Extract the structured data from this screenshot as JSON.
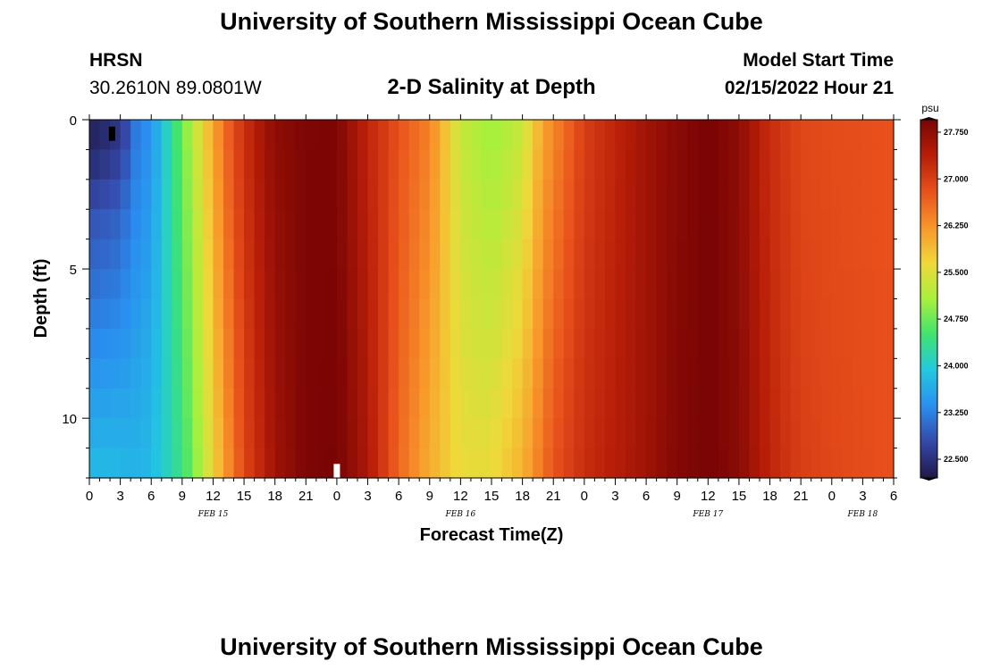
{
  "header": {
    "title": "University of Southern Mississippi Ocean Cube",
    "station_code": "HRSN",
    "station_coords": "30.2610N  89.0801W",
    "chart_title": "2-D Salinity at Depth",
    "start_label": "Model Start Time",
    "start_value": "02/15/2022 Hour 21"
  },
  "footer": {
    "title": "University of Southern Mississippi Ocean Cube"
  },
  "chart_data": {
    "type": "heatmap",
    "title": "2-D Salinity at Depth",
    "xlabel": "Forecast Time(Z)",
    "ylabel": "Depth (ft)",
    "x_tick_labels": [
      "0",
      "3",
      "6",
      "9",
      "12",
      "15",
      "18",
      "21",
      "0",
      "3",
      "6",
      "9",
      "12",
      "15",
      "18",
      "21",
      "0",
      "3",
      "6",
      "9",
      "12",
      "15",
      "18",
      "21",
      "0",
      "3",
      "6"
    ],
    "date_labels": [
      {
        "text": "FEB 15",
        "tick_index": 4
      },
      {
        "text": "FEB 16",
        "tick_index": 12
      },
      {
        "text": "FEB 17",
        "tick_index": 20
      },
      {
        "text": "FEB 18",
        "tick_index": 25
      }
    ],
    "y_ticks": [
      0,
      5,
      10
    ],
    "y_minor_step": 1,
    "ylim": [
      0,
      12
    ],
    "y_inverted": true,
    "hours_span": 78,
    "depth_rows": 12,
    "colorbar": {
      "unit": "psu",
      "range": [
        22.2,
        27.95
      ],
      "ticks": [
        "22.500",
        "23.250",
        "24.000",
        "24.750",
        "25.500",
        "26.250",
        "27.000",
        "27.750"
      ],
      "tick_values": [
        22.5,
        23.25,
        24.0,
        24.75,
        25.5,
        26.25,
        27.0,
        27.75
      ],
      "colors": [
        "#1f1848",
        "#3548a8",
        "#2a8ef0",
        "#22c8e0",
        "#3ee470",
        "#a8f03c",
        "#f0d83a",
        "#f8962a",
        "#e8501c",
        "#b81e08",
        "#780404"
      ]
    },
    "salinity_surface_profile": [
      [
        0,
        22.5
      ],
      [
        3,
        22.7
      ],
      [
        4,
        23.1
      ],
      [
        6,
        23.4
      ],
      [
        8,
        24.3
      ],
      [
        10,
        25.2
      ],
      [
        12,
        26.1
      ],
      [
        14,
        26.9
      ],
      [
        16,
        27.4
      ],
      [
        18,
        27.75
      ],
      [
        21,
        27.9
      ],
      [
        24,
        27.9
      ],
      [
        27,
        27.3
      ],
      [
        30,
        26.8
      ],
      [
        33,
        26.4
      ],
      [
        36,
        25.3
      ],
      [
        39,
        25.0
      ],
      [
        42,
        25.3
      ],
      [
        44,
        26.1
      ],
      [
        48,
        27.0
      ],
      [
        51,
        27.3
      ],
      [
        54,
        27.6
      ],
      [
        57,
        27.8
      ],
      [
        60,
        27.95
      ],
      [
        63,
        27.75
      ],
      [
        66,
        27.2
      ],
      [
        69,
        26.9
      ],
      [
        72,
        26.85
      ],
      [
        78,
        26.8
      ]
    ],
    "salinity_bottom_profile": [
      [
        0,
        23.8
      ],
      [
        3,
        23.8
      ],
      [
        4,
        23.7
      ],
      [
        6,
        23.8
      ],
      [
        9,
        24.4
      ],
      [
        11,
        25.2
      ],
      [
        13,
        26.1
      ],
      [
        15,
        26.9
      ],
      [
        18,
        27.6
      ],
      [
        21,
        27.9
      ],
      [
        24,
        27.95
      ],
      [
        27,
        27.5
      ],
      [
        30,
        26.6
      ],
      [
        33,
        26.0
      ],
      [
        36,
        25.6
      ],
      [
        39,
        25.6
      ],
      [
        42,
        26.0
      ],
      [
        45,
        26.8
      ],
      [
        48,
        27.2
      ],
      [
        51,
        27.4
      ],
      [
        54,
        27.6
      ],
      [
        57,
        27.85
      ],
      [
        60,
        27.95
      ],
      [
        63,
        27.8
      ],
      [
        66,
        27.3
      ],
      [
        69,
        27.0
      ],
      [
        72,
        26.9
      ],
      [
        78,
        26.8
      ]
    ],
    "fresh_pocket": {
      "hours": [
        0,
        4
      ],
      "depths": [
        0,
        3
      ],
      "min_value": 22.3
    },
    "markers": [
      {
        "hour": 2.2,
        "depth": 0.5,
        "color": "#000000"
      },
      {
        "hour": 24.0,
        "depth": 11.8,
        "color": "#ffffff"
      }
    ]
  }
}
